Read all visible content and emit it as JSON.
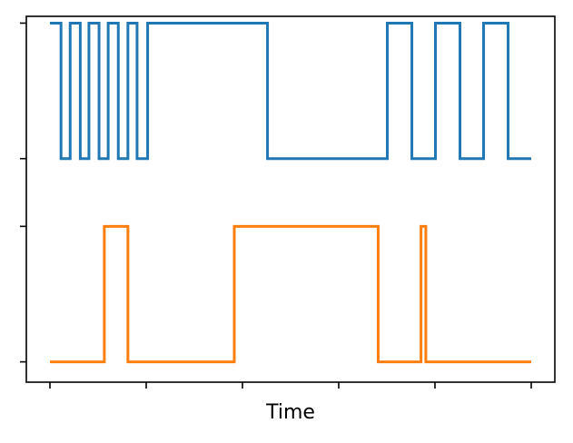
{
  "chart_data": {
    "type": "line",
    "title": "",
    "xlabel": "Time",
    "ylabel": "",
    "grid": false,
    "legend": "none",
    "xlim": [
      0,
      100
    ],
    "ylim": [
      -0.15,
      2.55
    ],
    "x_ticks": [
      0,
      20,
      40,
      60,
      80,
      100
    ],
    "y_ticks": [
      0,
      1,
      1.5,
      2.5
    ],
    "tick_labels_shown": false,
    "series": [
      {
        "color": "#1f77b4",
        "step": true,
        "low": 1.5,
        "high": 2.5,
        "segments": [
          {
            "x": 0,
            "y": 2.5
          },
          {
            "x": 2.3,
            "y": 1.5
          },
          {
            "x": 4.2,
            "y": 2.5
          },
          {
            "x": 6.3,
            "y": 1.5
          },
          {
            "x": 8.1,
            "y": 2.5
          },
          {
            "x": 10.2,
            "y": 1.5
          },
          {
            "x": 12.1,
            "y": 2.5
          },
          {
            "x": 14.2,
            "y": 1.5
          },
          {
            "x": 16.2,
            "y": 2.5
          },
          {
            "x": 18.1,
            "y": 1.5
          },
          {
            "x": 20.3,
            "y": 2.5
          },
          {
            "x": 45.2,
            "y": 1.5
          },
          {
            "x": 70.1,
            "y": 2.5
          },
          {
            "x": 75.2,
            "y": 1.5
          },
          {
            "x": 80.1,
            "y": 2.5
          },
          {
            "x": 85.2,
            "y": 1.5
          },
          {
            "x": 90.1,
            "y": 2.5
          },
          {
            "x": 95.2,
            "y": 1.5
          },
          {
            "x": 100,
            "y": 1.5
          }
        ]
      },
      {
        "color": "#ff7f0e",
        "step": true,
        "low": 0,
        "high": 1,
        "segments": [
          {
            "x": 0,
            "y": 0
          },
          {
            "x": 11.3,
            "y": 1
          },
          {
            "x": 16.2,
            "y": 0
          },
          {
            "x": 38.3,
            "y": 1
          },
          {
            "x": 68.2,
            "y": 0
          },
          {
            "x": 77.1,
            "y": 1
          },
          {
            "x": 78.1,
            "y": 0
          },
          {
            "x": 100,
            "y": 0
          }
        ]
      }
    ]
  }
}
